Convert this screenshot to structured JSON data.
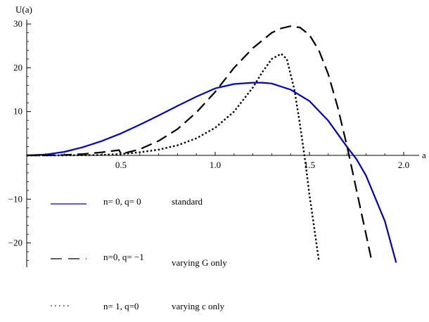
{
  "chart_data": {
    "type": "line",
    "xlabel": "a",
    "ylabel": "U(a)",
    "xlim": [
      0,
      2.0
    ],
    "ylim": [
      -25,
      31
    ],
    "x_ticks": [
      0.5,
      1.0,
      1.5,
      2.0
    ],
    "x_tick_labels": [
      "0.5",
      "1.0",
      "1.5",
      "2.0"
    ],
    "y_ticks": [
      -20,
      -10,
      10,
      20,
      30
    ],
    "y_tick_labels": [
      "−20",
      "−10",
      "10",
      "20",
      "30"
    ],
    "grid": false,
    "series": [
      {
        "name": "n= 0, q= 0",
        "description": "standard",
        "style": "solid",
        "color": "#0000cc",
        "x": [
          0.0,
          0.1,
          0.2,
          0.3,
          0.4,
          0.5,
          0.6,
          0.7,
          0.8,
          0.9,
          1.0,
          1.1,
          1.2,
          1.25,
          1.3,
          1.4,
          1.5,
          1.6,
          1.7,
          1.75,
          1.8,
          1.9,
          1.96
        ],
        "y": [
          0.0,
          0.2,
          0.8,
          1.9,
          3.3,
          5.0,
          7.0,
          9.1,
          11.3,
          13.4,
          15.3,
          16.3,
          16.6,
          16.6,
          16.4,
          15.0,
          12.4,
          7.9,
          1.9,
          -0.9,
          -4.6,
          -15.0,
          -24.5
        ]
      },
      {
        "name": "n=0, q= −1",
        "description": "varying G only",
        "style": "dashed",
        "color": "#000000",
        "x": [
          0.0,
          0.1,
          0.2,
          0.3,
          0.4,
          0.49,
          0.5,
          0.6,
          0.7,
          0.8,
          0.9,
          1.0,
          1.1,
          1.2,
          1.3,
          1.35,
          1.4,
          1.45,
          1.5,
          1.55,
          1.6,
          1.65,
          1.7,
          1.75,
          1.8,
          1.83
        ],
        "y": [
          0.0,
          0.0,
          0.1,
          0.3,
          0.7,
          1.2,
          0.3,
          1.4,
          3.3,
          6.0,
          9.8,
          14.5,
          20.0,
          24.5,
          28.0,
          29.0,
          29.5,
          29.2,
          27.5,
          24.0,
          18.5,
          11.0,
          2.0,
          -8.0,
          -18.0,
          -24.0
        ]
      },
      {
        "name": "n= 1, q=0",
        "description": "varying c only",
        "style": "dotted",
        "color": "#000000",
        "x": [
          0.0,
          0.2,
          0.4,
          0.5,
          0.6,
          0.7,
          0.8,
          0.9,
          1.0,
          1.1,
          1.2,
          1.25,
          1.3,
          1.35,
          1.38,
          1.42,
          1.45,
          1.48,
          1.5,
          1.52,
          1.54,
          1.55
        ],
        "y": [
          0.0,
          0.0,
          0.1,
          0.3,
          0.7,
          1.3,
          2.3,
          3.9,
          6.3,
          10.0,
          15.5,
          19.0,
          22.0,
          23.2,
          22.0,
          15.0,
          7.0,
          -2.0,
          -9.0,
          -15.0,
          -21.0,
          -24.0
        ]
      }
    ]
  }
}
